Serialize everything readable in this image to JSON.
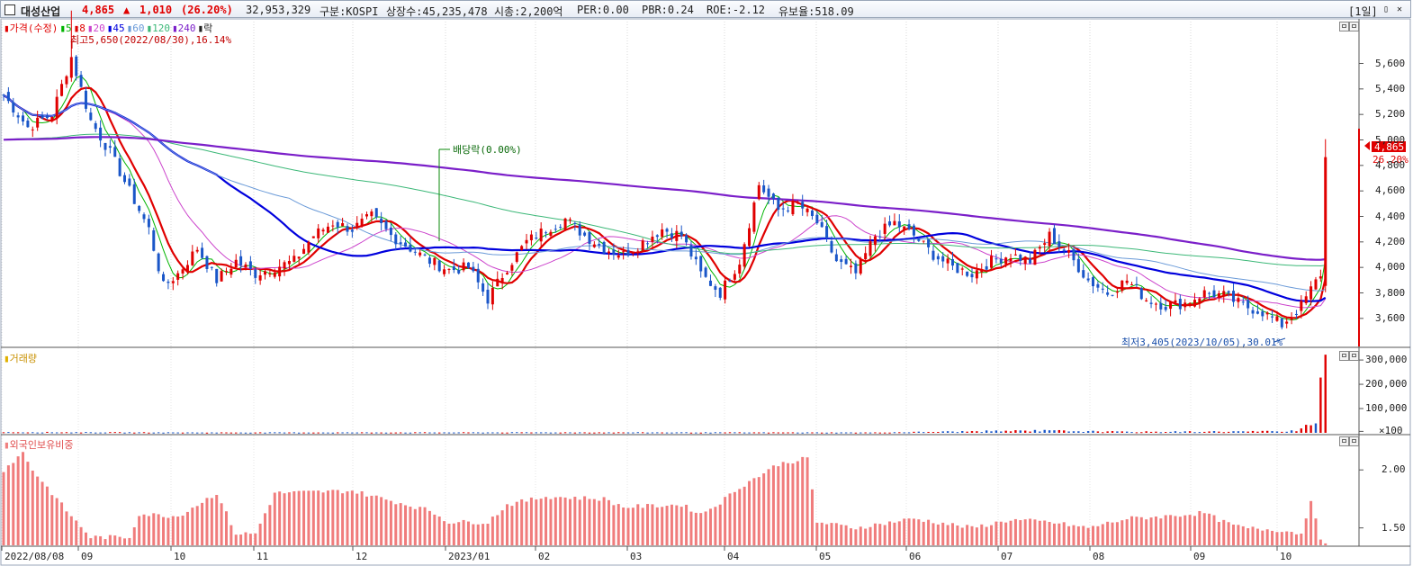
{
  "header": {
    "stock_name": "대성산업",
    "price": "4,865",
    "arrow": "▲",
    "change": "1,010",
    "change_pct": "(26.20%)",
    "volume": "32,953,329",
    "market": "구분:KOSPI",
    "shares": "상장수:45,235,478",
    "market_cap": "시총:2,200억",
    "per": "PER:0.00",
    "pbr": "PBR:0.24",
    "roe": "ROE:-2.12",
    "reserve": "유보율:518.09",
    "period_button": "[1일]",
    "minimize_button": "▯",
    "close_button": "✕"
  },
  "price_panel": {
    "legend": [
      {
        "label": "가격(수정)",
        "color": "#e00000"
      },
      {
        "label": "5",
        "color": "#00b400"
      },
      {
        "label": "8",
        "color": "#e00000"
      },
      {
        "label": "20",
        "color": "#cc44cc"
      },
      {
        "label": "45",
        "color": "#0000dd"
      },
      {
        "label": "60",
        "color": "#6a9ad8"
      },
      {
        "label": "120",
        "color": "#3cb878"
      },
      {
        "label": "240",
        "color": "#7b1fc9"
      },
      {
        "label": "락",
        "color": "#222222"
      }
    ],
    "high_note": "최고5,650(2022/08/30),16.14%",
    "low_note": "최저3,405(2023/10/05),30.01%",
    "dividend_note": "배당락(0.00%)",
    "current_price": "4,865",
    "current_pct": "26.20%",
    "y_ticks": [
      "5,600",
      "5,400",
      "5,200",
      "5,000",
      "4,800",
      "4,600",
      "4,400",
      "4,200",
      "4,000",
      "3,800",
      "3,600"
    ]
  },
  "volume_panel": {
    "title": "거래량",
    "y_ticks": [
      "300,000",
      "200,000",
      "100,000",
      "×100"
    ]
  },
  "foreign_panel": {
    "title": "외국인보유비중",
    "y_ticks": [
      "2.00",
      "1.50"
    ]
  },
  "x_axis": [
    "2022/08/08",
    "09",
    "10",
    "11",
    "12",
    "2023/01",
    "02",
    "03",
    "04",
    "05",
    "06",
    "07",
    "08",
    "09",
    "10"
  ],
  "chart_data": {
    "type": "candlestick",
    "title": "대성산업",
    "ylim": [
      3380,
      5780
    ],
    "price_path": [
      [
        0,
        5350
      ],
      [
        5,
        5100
      ],
      [
        10,
        5200
      ],
      [
        14,
        5650
      ],
      [
        18,
        5150
      ],
      [
        22,
        4900
      ],
      [
        26,
        4600
      ],
      [
        30,
        4300
      ],
      [
        33,
        3850
      ],
      [
        36,
        3950
      ],
      [
        40,
        4150
      ],
      [
        44,
        3900
      ],
      [
        48,
        4050
      ],
      [
        52,
        3950
      ],
      [
        56,
        4000
      ],
      [
        60,
        4050
      ],
      [
        64,
        4250
      ],
      [
        68,
        4350
      ],
      [
        72,
        4300
      ],
      [
        76,
        4400
      ],
      [
        80,
        4250
      ],
      [
        84,
        4150
      ],
      [
        88,
        4050
      ],
      [
        92,
        3980
      ],
      [
        96,
        4000
      ],
      [
        100,
        3750
      ],
      [
        104,
        4000
      ],
      [
        108,
        4200
      ],
      [
        112,
        4300
      ],
      [
        116,
        4380
      ],
      [
        120,
        4250
      ],
      [
        124,
        4150
      ],
      [
        128,
        4100
      ],
      [
        132,
        4200
      ],
      [
        136,
        4300
      ],
      [
        140,
        4250
      ],
      [
        144,
        3950
      ],
      [
        148,
        3800
      ],
      [
        152,
        4050
      ],
      [
        156,
        4650
      ],
      [
        160,
        4450
      ],
      [
        164,
        4500
      ],
      [
        168,
        4350
      ],
      [
        172,
        4050
      ],
      [
        176,
        3950
      ],
      [
        180,
        4250
      ],
      [
        184,
        4350
      ],
      [
        188,
        4250
      ],
      [
        192,
        4100
      ],
      [
        196,
        4000
      ],
      [
        200,
        3950
      ],
      [
        204,
        4050
      ],
      [
        208,
        4100
      ],
      [
        212,
        4050
      ],
      [
        216,
        4250
      ],
      [
        220,
        4100
      ],
      [
        224,
        3900
      ],
      [
        228,
        3800
      ],
      [
        232,
        3900
      ],
      [
        236,
        3750
      ],
      [
        240,
        3700
      ],
      [
        244,
        3720
      ],
      [
        248,
        3800
      ],
      [
        252,
        3780
      ],
      [
        256,
        3700
      ],
      [
        260,
        3650
      ],
      [
        264,
        3550
      ],
      [
        268,
        3700
      ],
      [
        272,
        3950
      ],
      [
        273,
        4865
      ]
    ],
    "ma_lines": [
      {
        "name": "5",
        "color": "#00b400"
      },
      {
        "name": "8",
        "color": "#e00000"
      },
      {
        "name": "20",
        "color": "#cc44cc"
      },
      {
        "name": "45",
        "color": "#0000dd"
      },
      {
        "name": "60",
        "color": "#6a9ad8"
      },
      {
        "name": "120",
        "color": "#3cb878"
      },
      {
        "name": "240",
        "color": "#7b1fc9"
      }
    ],
    "volume_ylim": [
      0,
      330000
    ],
    "volume_path": [
      [
        0,
        3000
      ],
      [
        40,
        1500
      ],
      [
        120,
        2000
      ],
      [
        180,
        1500
      ],
      [
        214,
        9000
      ],
      [
        232,
        4000
      ],
      [
        264,
        6000
      ],
      [
        268,
        15000
      ],
      [
        271,
        55000
      ],
      [
        273,
        322000
      ]
    ],
    "foreign_ylim": [
      1.35,
      2.25
    ],
    "foreign_path": [
      [
        0,
        2.0
      ],
      [
        4,
        2.15
      ],
      [
        6,
        2.0
      ],
      [
        14,
        1.6
      ],
      [
        18,
        1.42
      ],
      [
        26,
        1.42
      ],
      [
        28,
        1.62
      ],
      [
        36,
        1.6
      ],
      [
        44,
        1.8
      ],
      [
        48,
        1.45
      ],
      [
        52,
        1.45
      ],
      [
        56,
        1.8
      ],
      [
        72,
        1.82
      ],
      [
        88,
        1.65
      ],
      [
        92,
        1.55
      ],
      [
        100,
        1.55
      ],
      [
        104,
        1.7
      ],
      [
        112,
        1.77
      ],
      [
        124,
        1.75
      ],
      [
        128,
        1.68
      ],
      [
        140,
        1.7
      ],
      [
        144,
        1.62
      ],
      [
        148,
        1.72
      ],
      [
        152,
        1.85
      ],
      [
        160,
        2.05
      ],
      [
        166,
        2.1
      ],
      [
        168,
        1.55
      ],
      [
        176,
        1.5
      ],
      [
        188,
        1.58
      ],
      [
        200,
        1.5
      ],
      [
        208,
        1.57
      ],
      [
        216,
        1.55
      ],
      [
        224,
        1.5
      ],
      [
        232,
        1.58
      ],
      [
        240,
        1.6
      ],
      [
        248,
        1.63
      ],
      [
        252,
        1.55
      ],
      [
        256,
        1.5
      ],
      [
        264,
        1.48
      ],
      [
        268,
        1.45
      ],
      [
        270,
        1.75
      ],
      [
        272,
        1.38
      ]
    ]
  }
}
